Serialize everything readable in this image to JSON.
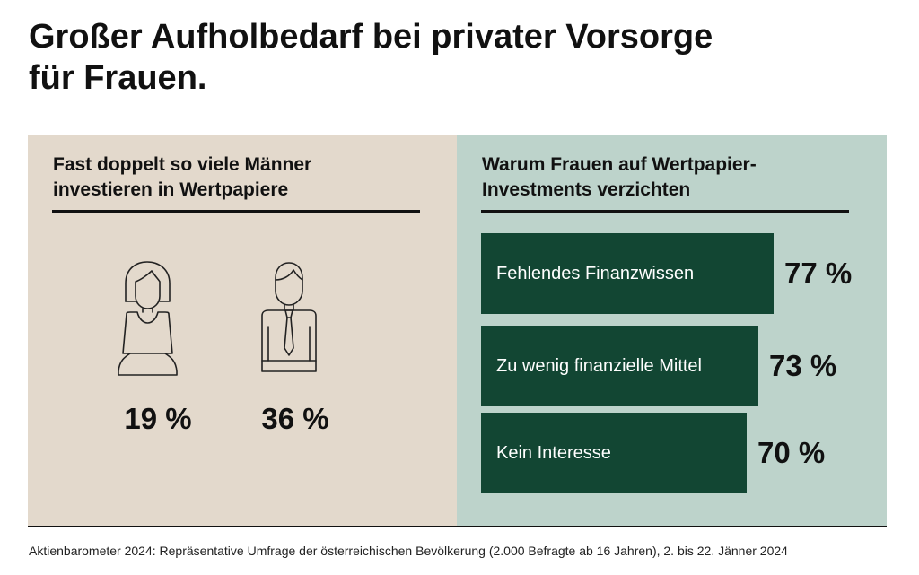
{
  "title_line1": "Großer Aufholbedarf bei privater Vorsorge",
  "title_line2": "für Frauen.",
  "left_panel": {
    "heading_line1": "Fast doppelt so viele Männer",
    "heading_line2": "investieren in Wertpapiere",
    "figures": [
      {
        "icon": "woman-icon",
        "label": "19 %"
      },
      {
        "icon": "man-icon",
        "label": "36 %"
      }
    ]
  },
  "right_panel": {
    "heading_line1": "Warum Frauen auf Wertpapier-",
    "heading_line2": "Investments verzichten"
  },
  "chart_data": [
    {
      "type": "bar",
      "title": "Fast doppelt so viele Männer investieren in Wertpapiere",
      "categories": [
        "woman-icon",
        "man-icon"
      ],
      "values": [
        19,
        36
      ],
      "value_labels": [
        "19 %",
        "36 %"
      ]
    },
    {
      "type": "bar",
      "orientation": "horizontal",
      "title": "Warum Frauen auf Wertpapier-Investments verzichten",
      "categories": [
        "Fehlendes Finanzwissen",
        "Zu wenig finanzielle Mittel",
        "Kein Interesse"
      ],
      "values": [
        77,
        73,
        70
      ],
      "value_labels": [
        "77 %",
        "73 %",
        "70 %"
      ]
    }
  ],
  "source": "Aktienbarometer 2024: Repräsentative Umfrage der österreichischen Bevölkerung (2.000 Befragte ab 16 Jahren), 2. bis 22. Jänner 2024",
  "colors": {
    "left_panel_bg": "#e3d9cc",
    "right_panel_bg": "#bdd3cb",
    "bar_fill": "#124633",
    "text": "#111111"
  }
}
